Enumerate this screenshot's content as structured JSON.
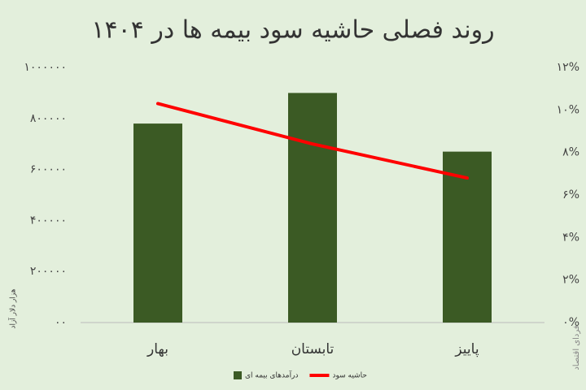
{
  "chart_data": {
    "type": "bar",
    "title": "روند فصلی حاشیه سود بیمه ها در ۱۴۰۴",
    "y_label": "هزار دلار آزاد",
    "watermark": "فردای اقتصاد",
    "categories": [
      "بهار",
      "تابستان",
      "پاییز"
    ],
    "series": [
      {
        "name": "درآمدهای بیمه ای",
        "type": "bar",
        "color": "#3b5a24",
        "values": [
          780000,
          900000,
          670000
        ]
      },
      {
        "name": "حاشیه سود",
        "type": "line",
        "axis": "y2",
        "color": "#ff0000",
        "values": [
          10.3,
          8.4,
          6.8
        ]
      }
    ],
    "ylim": [
      0,
      1000000
    ],
    "yticks": [
      {
        "value": 0,
        "label": "۰۰"
      },
      {
        "value": 200000,
        "label": "۲۰۰۰۰۰"
      },
      {
        "value": 400000,
        "label": "۴۰۰۰۰۰"
      },
      {
        "value": 600000,
        "label": "۶۰۰۰۰۰"
      },
      {
        "value": 800000,
        "label": "۸۰۰۰۰۰"
      },
      {
        "value": 1000000,
        "label": "۱۰۰۰۰۰۰"
      }
    ],
    "y2lim": [
      0,
      12
    ],
    "y2ticks": [
      {
        "value": 0,
        "label": "۰%"
      },
      {
        "value": 2,
        "label": "۲%"
      },
      {
        "value": 4,
        "label": "۴%"
      },
      {
        "value": 6,
        "label": "۶%"
      },
      {
        "value": 8,
        "label": "۸%"
      },
      {
        "value": 10,
        "label": "۱۰%"
      },
      {
        "value": 12,
        "label": "۱۲%"
      }
    ],
    "legend": "bottom"
  }
}
